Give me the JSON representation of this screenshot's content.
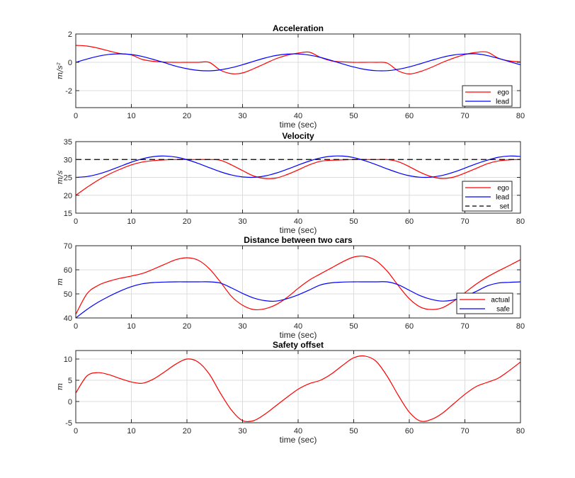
{
  "chart_data": [
    {
      "type": "line",
      "title": "Acceleration",
      "xlabel": "time (sec)",
      "ylabel": "m/s²",
      "xlim": [
        0,
        80
      ],
      "ylim": [
        -3.2,
        2
      ],
      "xticks": [
        0,
        10,
        20,
        30,
        40,
        50,
        60,
        70,
        80
      ],
      "yticks": [
        -2,
        0,
        2
      ],
      "grid": true,
      "legend": "bottom-right",
      "x": [
        0,
        2,
        4,
        6,
        8,
        10,
        12,
        14,
        16,
        18,
        20,
        22,
        24,
        26,
        28,
        30,
        32,
        34,
        36,
        38,
        40,
        42,
        44,
        46,
        48,
        50,
        52,
        54,
        56,
        58,
        60,
        62,
        64,
        66,
        68,
        70,
        72,
        74,
        76,
        78,
        80
      ],
      "series": [
        {
          "name": "ego",
          "color": "#ff0000",
          "dash": false,
          "values": [
            1.2,
            1.15,
            1.0,
            0.8,
            0.62,
            0.52,
            0.2,
            0.07,
            0.02,
            0,
            0,
            0,
            0,
            -0.55,
            -0.8,
            -0.75,
            -0.45,
            -0.1,
            0.25,
            0.5,
            0.65,
            0.72,
            0.35,
            0.1,
            0.03,
            0,
            0,
            0,
            -0.05,
            -0.6,
            -0.82,
            -0.65,
            -0.35,
            0,
            0.3,
            0.55,
            0.7,
            0.72,
            0.3,
            0.1,
            0.03
          ]
        },
        {
          "name": "lead",
          "color": "#0000ff",
          "dash": false,
          "values": [
            0,
            0.23,
            0.43,
            0.56,
            0.6,
            0.55,
            0.41,
            0.2,
            -0.03,
            -0.27,
            -0.45,
            -0.57,
            -0.6,
            -0.53,
            -0.38,
            -0.17,
            0.07,
            0.3,
            0.48,
            0.58,
            0.59,
            0.51,
            0.35,
            0.13,
            -0.11,
            -0.33,
            -0.5,
            -0.59,
            -0.59,
            -0.49,
            -0.32,
            -0.1,
            0.14,
            0.36,
            0.52,
            0.59,
            0.6,
            0.48,
            0.28,
            0.05,
            -0.17
          ]
        }
      ]
    },
    {
      "type": "line",
      "title": "Velocity",
      "xlabel": "time (sec)",
      "ylabel": "m/s",
      "xlim": [
        0,
        80
      ],
      "ylim": [
        15,
        35
      ],
      "xticks": [
        0,
        10,
        20,
        30,
        40,
        50,
        60,
        70,
        80
      ],
      "yticks": [
        15,
        20,
        25,
        30,
        35
      ],
      "grid": true,
      "legend": "bottom-right",
      "x": [
        0,
        2,
        4,
        6,
        8,
        10,
        12,
        14,
        16,
        18,
        20,
        22,
        24,
        26,
        28,
        30,
        32,
        34,
        36,
        38,
        40,
        42,
        44,
        46,
        48,
        50,
        52,
        54,
        56,
        58,
        60,
        62,
        64,
        66,
        68,
        70,
        72,
        74,
        76,
        78,
        80
      ],
      "series": [
        {
          "name": "ego",
          "color": "#ff0000",
          "dash": false,
          "values": [
            20,
            22.2,
            24.2,
            25.9,
            27.3,
            28.5,
            29.3,
            29.7,
            29.9,
            30,
            30,
            30,
            30,
            29.8,
            28.5,
            26.9,
            25.4,
            24.7,
            24.8,
            25.8,
            27.1,
            28.5,
            29.5,
            29.8,
            29.9,
            30,
            30,
            30,
            30,
            29.4,
            28,
            26.4,
            25.2,
            24.7,
            25.1,
            26.2,
            27.5,
            28.8,
            29.6,
            29.9,
            30
          ]
        },
        {
          "name": "lead",
          "color": "#0000ff",
          "dash": false,
          "values": [
            25,
            25.24,
            25.91,
            26.91,
            28.09,
            29.25,
            30.21,
            30.83,
            30.99,
            30.69,
            29.96,
            28.92,
            27.74,
            26.59,
            25.67,
            25.12,
            25.02,
            25.39,
            26.18,
            27.25,
            28.44,
            29.56,
            30.43,
            30.93,
            30.96,
            30.52,
            29.68,
            28.58,
            27.39,
            26.3,
            25.47,
            25.04,
            25.08,
            25.58,
            26.46,
            27.59,
            28.79,
            29.8,
            30.63,
            30.99,
            30.87
          ]
        },
        {
          "name": "set",
          "color": "#000000",
          "dash": true,
          "values": [
            30,
            30,
            30,
            30,
            30,
            30,
            30,
            30,
            30,
            30,
            30,
            30,
            30,
            30,
            30,
            30,
            30,
            30,
            30,
            30,
            30,
            30,
            30,
            30,
            30,
            30,
            30,
            30,
            30,
            30,
            30,
            30,
            30,
            30,
            30,
            30,
            30,
            30,
            30,
            30,
            30
          ]
        }
      ]
    },
    {
      "type": "line",
      "title": "Distance between two cars",
      "xlabel": "time (sec)",
      "ylabel": "m",
      "xlim": [
        0,
        80
      ],
      "ylim": [
        40,
        70
      ],
      "xticks": [
        0,
        10,
        20,
        30,
        40,
        50,
        60,
        70,
        80
      ],
      "yticks": [
        40,
        50,
        60,
        70
      ],
      "grid": true,
      "legend": "bottom-right",
      "x": [
        0,
        2,
        4,
        6,
        8,
        10,
        12,
        14,
        16,
        18,
        20,
        22,
        24,
        26,
        28,
        30,
        32,
        34,
        36,
        38,
        40,
        42,
        44,
        46,
        48,
        50,
        52,
        54,
        56,
        58,
        60,
        62,
        64,
        66,
        68,
        70,
        72,
        74,
        76,
        78,
        80
      ],
      "series": [
        {
          "name": "actual",
          "color": "#ff0000",
          "dash": false,
          "values": [
            41.5,
            50,
            53.5,
            55.3,
            56.5,
            57.4,
            58.5,
            60.3,
            62.3,
            64.2,
            65,
            64,
            60.5,
            55,
            49,
            45.3,
            43.5,
            43.8,
            45.5,
            48.5,
            52.3,
            55.7,
            58.3,
            60.8,
            63.3,
            65.3,
            65.6,
            63.8,
            59.5,
            53.5,
            48,
            44.5,
            43.5,
            44.3,
            47,
            50.5,
            54,
            57,
            59.5,
            61.8,
            64.2
          ]
        },
        {
          "name": "safe",
          "color": "#0000ff",
          "dash": false,
          "values": [
            40,
            43.5,
            46.5,
            49,
            51.2,
            53,
            54.2,
            54.7,
            54.9,
            55,
            55,
            55,
            55,
            54.5,
            52.5,
            50.2,
            48.3,
            47.2,
            47,
            48,
            49.6,
            51.6,
            53.7,
            54.6,
            54.9,
            55,
            55,
            55,
            55,
            53.8,
            51.5,
            49.2,
            47.7,
            47,
            47.5,
            49,
            51,
            53.3,
            54.5,
            54.8,
            55
          ]
        }
      ]
    },
    {
      "type": "line",
      "title": "Safety offset",
      "xlabel": "time (sec)",
      "ylabel": "m",
      "xlim": [
        0,
        80
      ],
      "ylim": [
        -5,
        12
      ],
      "xticks": [
        0,
        10,
        20,
        30,
        40,
        50,
        60,
        70,
        80
      ],
      "yticks": [
        -5,
        0,
        5,
        10
      ],
      "grid": true,
      "legend": "none",
      "x": [
        0,
        2,
        4,
        6,
        8,
        10,
        12,
        14,
        16,
        18,
        20,
        22,
        24,
        26,
        28,
        30,
        32,
        34,
        36,
        38,
        40,
        42,
        44,
        46,
        48,
        50,
        52,
        54,
        56,
        58,
        60,
        62,
        64,
        66,
        68,
        70,
        72,
        74,
        76,
        78,
        80
      ],
      "series": [
        {
          "color": "#ff0000",
          "dash": false,
          "values": [
            2,
            6,
            6.8,
            6.3,
            5.4,
            4.6,
            4.3,
            5.3,
            7,
            8.8,
            10,
            9.3,
            6.5,
            2,
            -2,
            -4.5,
            -4.5,
            -3,
            -1,
            1,
            2.9,
            4.2,
            5,
            6.5,
            8.5,
            10.3,
            10.7,
            9.5,
            6,
            1.5,
            -2.5,
            -4.6,
            -4.2,
            -2.7,
            -0.5,
            1.7,
            3.5,
            4.5,
            5.5,
            7.3,
            9.3
          ]
        }
      ]
    }
  ]
}
